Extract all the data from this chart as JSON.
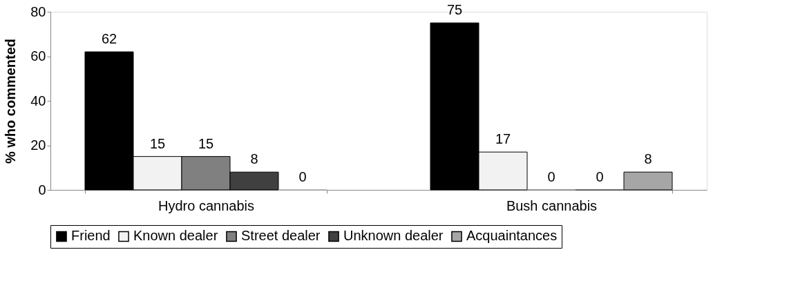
{
  "chart_data": {
    "type": "bar",
    "ylabel": "% who commented",
    "categories": [
      "Hydro cannabis",
      "Bush cannabis"
    ],
    "series": [
      {
        "name": "Friend",
        "color": "#000000",
        "values": [
          62,
          75
        ]
      },
      {
        "name": "Known dealer",
        "color": "#f2f2f2",
        "values": [
          15,
          17
        ]
      },
      {
        "name": "Street dealer",
        "color": "#808080",
        "values": [
          15,
          0
        ]
      },
      {
        "name": "Unknown dealer",
        "color": "#404040",
        "values": [
          8,
          0
        ]
      },
      {
        "name": "Acquaintances",
        "color": "#a6a6a6",
        "values": [
          0,
          8
        ]
      }
    ],
    "ylim": [
      0,
      80
    ],
    "yticks": [
      0,
      20,
      40,
      60,
      80
    ],
    "data_labels": true,
    "grid": false,
    "legend": "bottom"
  }
}
